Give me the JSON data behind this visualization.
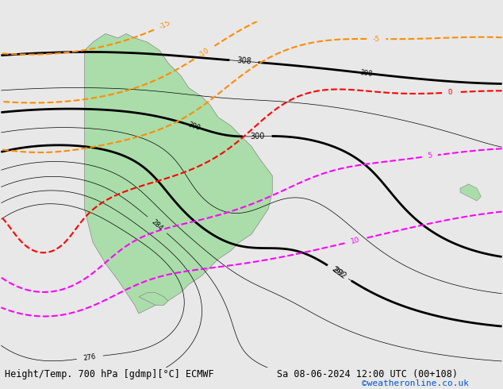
{
  "title_left": "Height/Temp. 700 hPa [gdmp][°C] ECMWF",
  "title_right": "Sa 08-06-2024 12:00 UTC (00+108)",
  "credit": "©weatheronline.co.uk",
  "bg_color": "#e8e8e8",
  "land_color": "#aaddaa",
  "coast_color": "#888888",
  "figsize": [
    6.34,
    4.9
  ],
  "dpi": 100,
  "font_size_title": 8.5,
  "font_size_credit": 8,
  "bottom_text_color_left": "#000000",
  "bottom_text_color_right": "#000000",
  "credit_color": "#0055cc"
}
